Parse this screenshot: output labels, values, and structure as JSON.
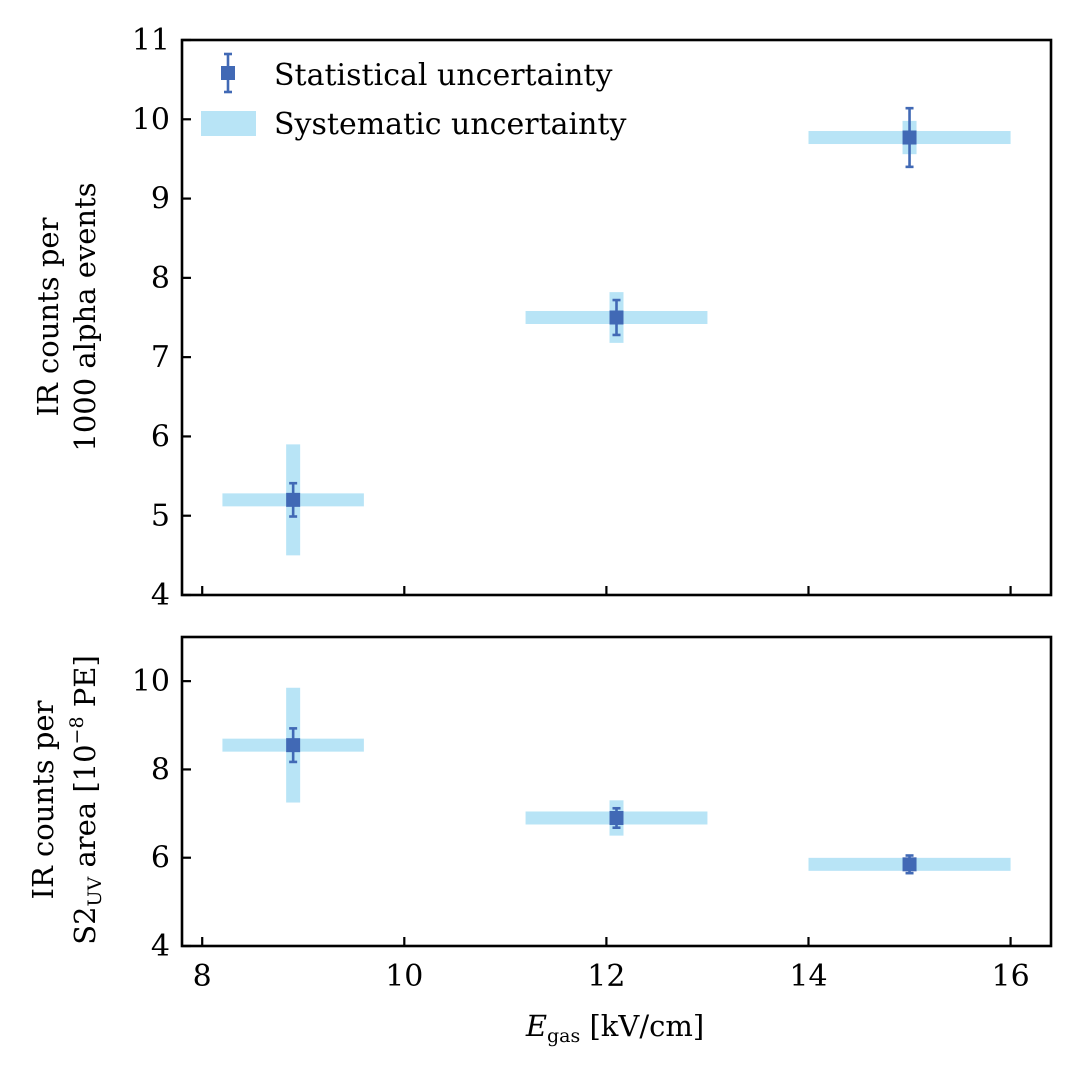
{
  "colors": {
    "statistical": "#4169b5",
    "systematic": "#b8e4f6"
  },
  "legend": {
    "statistical": "Statistical uncertainty",
    "systematic": "Systematic uncertainty"
  },
  "chart_data": [
    {
      "type": "scatter",
      "panel": "top",
      "ylabel_line1": "IR counts per",
      "ylabel_line2": "1000 alpha events",
      "ylim": [
        4,
        11
      ],
      "yticks": [
        4,
        5,
        6,
        7,
        8,
        9,
        10,
        11
      ],
      "xlim": [
        7.8,
        16.4
      ],
      "xticks": [
        8,
        10,
        12,
        14,
        16
      ],
      "series": [
        {
          "name": "Statistical uncertainty",
          "x": [
            8.9,
            12.1,
            15.0
          ],
          "y": [
            5.2,
            7.5,
            9.77
          ],
          "yerr": [
            0.21,
            0.22,
            0.37
          ]
        },
        {
          "name": "Systematic uncertainty",
          "x": [
            8.9,
            12.1,
            15.0
          ],
          "y": [
            5.2,
            7.5,
            9.77
          ],
          "xrange": [
            [
              8.2,
              9.6
            ],
            [
              11.2,
              13.0
            ],
            [
              14.0,
              16.0
            ]
          ],
          "yrange": [
            [
              4.5,
              5.9
            ],
            [
              7.18,
              7.82
            ],
            [
              9.56,
              9.98
            ]
          ]
        }
      ]
    },
    {
      "type": "scatter",
      "panel": "bottom",
      "ylabel_line1": "IR counts per",
      "ylabel_main": "S2",
      "ylabel_sub": "UV",
      "ylabel_rest": " area [10",
      "ylabel_exp": "−8",
      "ylabel_end": " PE]",
      "xlabel_main": "E",
      "xlabel_sub": "gas",
      "xlabel_rest": " [kV/cm]",
      "ylim": [
        4,
        11
      ],
      "yticks": [
        4,
        6,
        8,
        10
      ],
      "xlim": [
        7.8,
        16.4
      ],
      "xticks": [
        8,
        10,
        12,
        14,
        16
      ],
      "series": [
        {
          "name": "Statistical uncertainty",
          "x": [
            8.9,
            12.1,
            15.0
          ],
          "y": [
            8.55,
            6.9,
            5.85
          ],
          "yerr": [
            0.38,
            0.22,
            0.2
          ]
        },
        {
          "name": "Systematic uncertainty",
          "x": [
            8.9,
            12.1,
            15.0
          ],
          "y": [
            8.55,
            6.9,
            5.85
          ],
          "xrange": [
            [
              8.2,
              9.6
            ],
            [
              11.2,
              13.0
            ],
            [
              14.0,
              16.0
            ]
          ],
          "yrange": [
            [
              7.25,
              9.85
            ],
            [
              6.5,
              7.3
            ],
            [
              5.7,
              6.0
            ]
          ]
        }
      ]
    }
  ]
}
